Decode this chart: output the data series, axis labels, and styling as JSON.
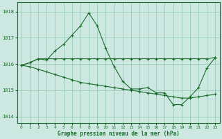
{
  "background_color": "#cce8e0",
  "grid_color": "#99ccbb",
  "line_color": "#1a6b2a",
  "ylim": [
    1013.75,
    1018.35
  ],
  "xlim": [
    -0.5,
    23.5
  ],
  "yticks": [
    1014,
    1015,
    1016,
    1017,
    1018
  ],
  "xticks": [
    0,
    1,
    2,
    3,
    4,
    5,
    6,
    7,
    8,
    9,
    10,
    11,
    12,
    13,
    14,
    15,
    16,
    17,
    18,
    19,
    20,
    21,
    22,
    23
  ],
  "xlabel": "Graphe pression niveau de la mer (hPa)",
  "series": [
    {
      "x": [
        0,
        1,
        2,
        3,
        4,
        5,
        6,
        7,
        8,
        9,
        10,
        11,
        12,
        13,
        14,
        15,
        16,
        17,
        18,
        19,
        20,
        21,
        22,
        23
      ],
      "y": [
        1015.95,
        1016.05,
        1016.2,
        1016.2,
        1016.2,
        1016.2,
        1016.2,
        1016.2,
        1016.2,
        1016.2,
        1016.2,
        1016.2,
        1016.2,
        1016.2,
        1016.2,
        1016.2,
        1016.2,
        1016.2,
        1016.2,
        1016.2,
        1016.2,
        1016.2,
        1016.2,
        1016.25
      ]
    },
    {
      "x": [
        0,
        1,
        2,
        3,
        4,
        5,
        6,
        7,
        8,
        9,
        10,
        11,
        12,
        13,
        14,
        15,
        16,
        17,
        18,
        19,
        20,
        21,
        22,
        23
      ],
      "y": [
        1015.95,
        1016.05,
        1016.2,
        1016.15,
        1016.5,
        1016.75,
        1017.1,
        1017.45,
        1017.95,
        1017.45,
        1016.6,
        1015.9,
        1015.35,
        1015.05,
        1015.05,
        1015.1,
        1014.9,
        1014.9,
        1014.45,
        1014.45,
        1014.75,
        1015.1,
        1015.85,
        1016.25
      ]
    },
    {
      "x": [
        0,
        1,
        2,
        3,
        4,
        5,
        6,
        7,
        8,
        9,
        10,
        11,
        12,
        13,
        14,
        15,
        16,
        17,
        18,
        19,
        20,
        21,
        22,
        23
      ],
      "y": [
        1015.95,
        1015.9,
        1015.8,
        1015.7,
        1015.6,
        1015.5,
        1015.4,
        1015.3,
        1015.25,
        1015.2,
        1015.15,
        1015.1,
        1015.05,
        1015.0,
        1014.95,
        1014.9,
        1014.85,
        1014.8,
        1014.75,
        1014.7,
        1014.7,
        1014.75,
        1014.8,
        1014.85
      ]
    }
  ]
}
